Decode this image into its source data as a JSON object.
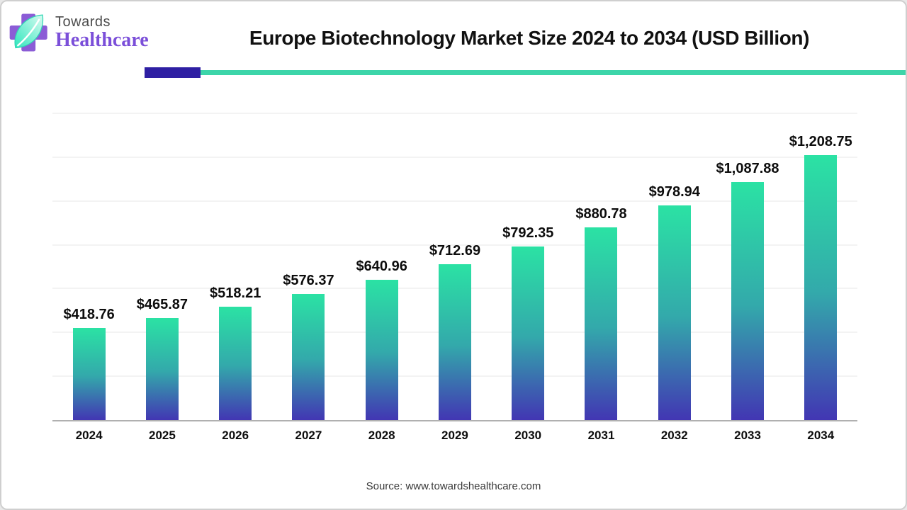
{
  "header": {
    "brand_top": "Towards",
    "brand_bottom": "Healthcare",
    "title": "Europe Biotechnology Market Size 2024 to 2034 (USD Billion)"
  },
  "colors": {
    "bar_top": "#2BE2A4",
    "bar_mid": "#33A9AB",
    "bar_bottom": "#4236B3",
    "rule_purple": "#2E1FA3",
    "rule_teal": "#3CD5A9",
    "brand_purple": "#7B4FD9",
    "axis_line": "#B0B0B0",
    "logo_cross": "#8B5CD6",
    "logo_leaf_dark": "#2FE6BD",
    "logo_leaf_light": "#D9FBF1"
  },
  "chart_data": {
    "type": "bar",
    "title": "Europe Biotechnology Market Size 2024 to 2034 (USD Billion)",
    "categories": [
      "2024",
      "2025",
      "2026",
      "2027",
      "2028",
      "2029",
      "2030",
      "2031",
      "2032",
      "2033",
      "2034"
    ],
    "values": [
      418.76,
      465.87,
      518.21,
      576.37,
      640.96,
      712.69,
      792.35,
      880.78,
      978.94,
      1087.88,
      1208.75
    ],
    "value_labels": [
      "$418.76",
      "$465.87",
      "$518.21",
      "$576.37",
      "$640.96",
      "$712.69",
      "$792.35",
      "$880.78",
      "$978.94",
      "$1,087.88",
      "$1,208.75"
    ],
    "unit": "USD Billion",
    "xlabel": "",
    "ylabel": "",
    "ylim": [
      0,
      1400
    ],
    "gridline_step": 200,
    "grid": true,
    "legend": "none"
  },
  "footer": {
    "source": "Source: www.towardshealthcare.com"
  }
}
